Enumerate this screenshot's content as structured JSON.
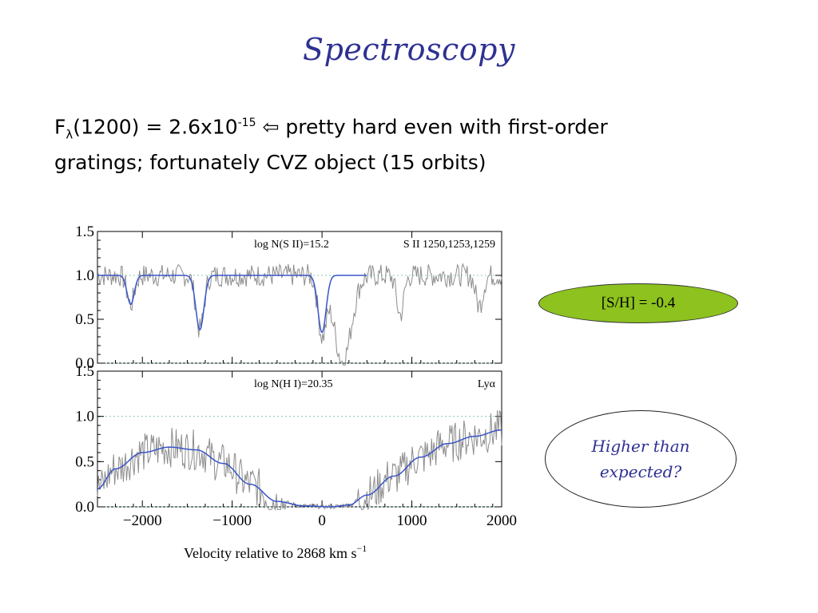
{
  "slide": {
    "title": "Spectroscopy",
    "bullet": {
      "flux_symbol": "F",
      "flux_sub": "λ",
      "flux_arg": "(1200) = 2.6x10",
      "flux_exp": "-15",
      "arrow": " ⇦ ",
      "text_1": "pretty hard even with first-order",
      "text_2": "gratings; fortunately CVZ object (15 orbits)"
    },
    "callout_metallicity": "[S/H] = -0.4",
    "callout_question_1": "Higher than",
    "callout_question_2": "expected?"
  },
  "colors": {
    "title": "#2e3192",
    "data_line": "#8c8c8c",
    "fit_line": "#3a55c8",
    "callout_green": "#8dc21f",
    "dotted_grid": "#88c8c0"
  },
  "chart_data": [
    {
      "type": "line",
      "panel": "top",
      "annotation_left": "log N(S II)=15.2",
      "annotation_right": "S II 1250,1253,1259",
      "xlim": [
        -2500,
        2000
      ],
      "ylim": [
        0.0,
        1.5
      ],
      "yticks": [
        "1.5",
        "1.0",
        "0.5",
        "0.0"
      ],
      "ytick_values": [
        1.5,
        1.0,
        0.5,
        0.0
      ],
      "reference_lines": [
        1.0,
        0.0
      ],
      "continuum": 1.0,
      "absorption_lines": [
        {
          "velocity": -2130,
          "depth": 0.33,
          "width": 40
        },
        {
          "velocity": -1360,
          "depth": 0.62,
          "width": 45
        },
        {
          "velocity": 0,
          "depth": 0.65,
          "width": 45
        },
        {
          "velocity": 230,
          "depth": 0.98,
          "width": 95
        },
        {
          "velocity": 870,
          "depth": 0.45,
          "width": 40
        },
        {
          "velocity": 1750,
          "depth": 0.35,
          "width": 40
        }
      ],
      "fit_line_xrange": [
        -2500,
        500
      ],
      "series": [
        {
          "name": "data",
          "color": "#8c8c8c"
        },
        {
          "name": "fit",
          "color": "#3a55c8"
        }
      ]
    },
    {
      "type": "line",
      "panel": "bottom",
      "annotation_left": "log N(H I)=20.35",
      "annotation_right": "Lyα",
      "xlim": [
        -2500,
        2000
      ],
      "ylim": [
        0.0,
        1.5
      ],
      "yticks": [
        "1.5",
        "1.0",
        "0.5",
        "0.0"
      ],
      "ytick_values": [
        1.5,
        1.0,
        0.5,
        0.0
      ],
      "reference_lines": [
        1.0,
        0.0
      ],
      "xticks": [
        "−2000",
        "−1000",
        "0",
        "1000",
        "2000"
      ],
      "xtick_values": [
        -2000,
        -1000,
        0,
        1000,
        2000
      ],
      "xlabel": "Velocity relative to 2868 km s",
      "xlabel_sup": "−1",
      "fit_points": [
        {
          "x": -2500,
          "y": 0.2
        },
        {
          "x": -2300,
          "y": 0.42
        },
        {
          "x": -2000,
          "y": 0.6
        },
        {
          "x": -1700,
          "y": 0.66
        },
        {
          "x": -1400,
          "y": 0.63
        },
        {
          "x": -1100,
          "y": 0.48
        },
        {
          "x": -800,
          "y": 0.25
        },
        {
          "x": -500,
          "y": 0.06
        },
        {
          "x": -200,
          "y": 0.01
        },
        {
          "x": 100,
          "y": 0.0
        },
        {
          "x": 300,
          "y": 0.02
        },
        {
          "x": 500,
          "y": 0.13
        },
        {
          "x": 800,
          "y": 0.34
        },
        {
          "x": 1100,
          "y": 0.55
        },
        {
          "x": 1400,
          "y": 0.7
        },
        {
          "x": 1700,
          "y": 0.78
        },
        {
          "x": 2000,
          "y": 0.85
        }
      ],
      "series": [
        {
          "name": "data",
          "color": "#8c8c8c"
        },
        {
          "name": "fit",
          "color": "#3a55c8"
        }
      ]
    }
  ]
}
